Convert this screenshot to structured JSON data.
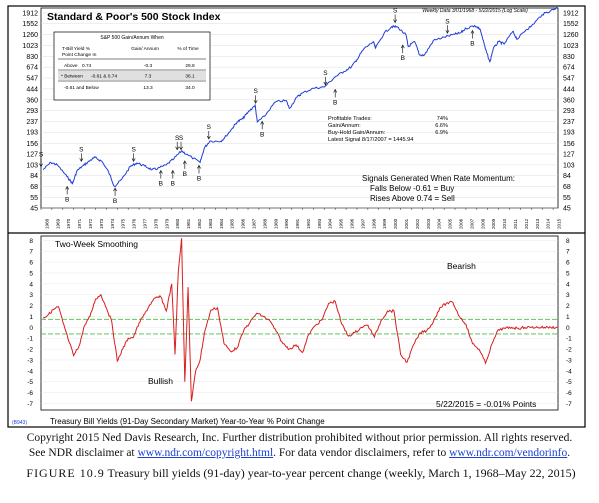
{
  "top_panel": {
    "title": "Standard & Poor's 500 Stock Index",
    "date_range": "Weekly Data 3/01/1968 - 5/22/2015 (Log Scale)",
    "table": {
      "title": "S&P 500 Gain/Annum When",
      "headers": [
        "T-Bill Yield %",
        "Point Change In",
        "Gain/ Annum",
        "% of Time"
      ],
      "rows": [
        {
          "label": "Above",
          "threshold": "0.74",
          "gain": "-0.3",
          "time": "29.8"
        },
        {
          "label": "* Between",
          "threshold": "-0.61 & 0.74",
          "gain": "7.3",
          "time": "36.1"
        },
        {
          "label": "-0.61 and Below",
          "threshold": "",
          "gain": "13.3",
          "time": "34.0"
        }
      ]
    },
    "stats": [
      {
        "label": "Profitable Trades:",
        "value": "74%"
      },
      {
        "label": "Gain/Annum:",
        "value": "6.6%"
      },
      {
        "label": "Buy-Hold Gain/Annum:",
        "value": "6.9%"
      },
      {
        "label": "Latest Signal 8/17/2007 = 1445.94",
        "value": ""
      }
    ],
    "signals_text": [
      "Signals Generated When Rate Momentum:",
      "Falls Below -0.61 = Buy",
      "Rises Above 0.74 = Sell"
    ]
  },
  "bottom_panel": {
    "title": "Two-Week Smoothing",
    "bearish_label": "Bearish",
    "bullish_label": "Bullish",
    "latest": "5/22/2015 = -0.01% Points",
    "footer_code": "(B943)",
    "footer_title": "Treasury Bill Yields (91-Day Secondary Market) Year-to-Year % Point Change"
  },
  "copyright": {
    "line1": "Copyright 2015 Ned Davis Research, Inc. Further distribution prohibited without prior permission. All rights reserved.",
    "line2_pre": "See NDR disclaimer at ",
    "line2_link1": "www.ndr.com/copyright.html",
    "line2_mid": ". For data vendor disclaimers, refer to ",
    "line2_link2": "www.ndr.com/vendorinfo",
    "line2_post": "."
  },
  "caption": {
    "label": "FIGURE 10.9",
    "text": "Treasury bill yields (91-day) year-to-year percent change (weekly, March 1, 1968–May 22, 2015)"
  },
  "colors": {
    "spx_line": "#1f3fd6",
    "rate_line": "#d81e1e",
    "threshold_line": "#4db84d",
    "frame": "#000000"
  },
  "chart_data": [
    {
      "type": "line",
      "name": "S&P 500",
      "title": "Standard & Poor's 500 Stock Index",
      "scale": "log",
      "ylim": [
        45,
        2100
      ],
      "y_ticks": [
        45,
        55,
        68,
        84,
        103,
        127,
        156,
        193,
        237,
        293,
        360,
        444,
        547,
        674,
        830,
        1023,
        1260,
        1552,
        1912
      ],
      "x_ticks": [
        1968,
        1969,
        1970,
        1971,
        1972,
        1973,
        1974,
        1975,
        1976,
        1977,
        1978,
        1979,
        1980,
        1981,
        1982,
        1983,
        1984,
        1985,
        1986,
        1987,
        1988,
        1989,
        1990,
        1991,
        1992,
        1993,
        1994,
        1995,
        1996,
        1997,
        1998,
        1999,
        2000,
        2001,
        2002,
        2003,
        2004,
        2005,
        2006,
        2007,
        2008,
        2009,
        2010,
        2011,
        2012,
        2013,
        2014,
        2015
      ],
      "x": [
        1968.2,
        1968.9,
        1969.5,
        1970.4,
        1970.9,
        1971.3,
        1971.9,
        1972.5,
        1972.95,
        1973.6,
        1974.2,
        1974.75,
        1975.4,
        1976.2,
        1976.8,
        1977.5,
        1978.2,
        1978.7,
        1979.5,
        1980.2,
        1980.9,
        1981.5,
        1982.6,
        1983.0,
        1983.5,
        1984.5,
        1985.0,
        1985.5,
        1986.0,
        1986.5,
        1987.0,
        1987.65,
        1987.85,
        1988.5,
        1989.5,
        1990.5,
        1990.8,
        1991.5,
        1992.0,
        1993.0,
        1994.0,
        1995.0,
        1995.8,
        1996.5,
        1997.0,
        1997.6,
        1998.5,
        1998.7,
        1999.5,
        2000.2,
        2000.7,
        2001.5,
        2001.7,
        2002.3,
        2002.75,
        2003.2,
        2004.0,
        2005.0,
        2006.0,
        2006.5,
        2007.0,
        2007.8,
        2008.3,
        2008.8,
        2009.2,
        2009.5,
        2010.0,
        2010.5,
        2011.3,
        2011.7,
        2012.5,
        2013.0,
        2014.0,
        2014.8,
        2015.4
      ],
      "y": [
        94,
        108,
        103,
        82,
        72,
        92,
        102,
        112,
        119,
        110,
        90,
        68,
        78,
        100,
        107,
        101,
        94,
        96,
        103,
        116,
        135,
        124,
        108,
        143,
        163,
        162,
        180,
        205,
        235,
        250,
        283,
        325,
        235,
        262,
        345,
        355,
        305,
        380,
        410,
        450,
        460,
        560,
        620,
        680,
        780,
        950,
        1100,
        970,
        1300,
        1470,
        1460,
        1250,
        1000,
        1100,
        850,
        850,
        1120,
        1200,
        1270,
        1300,
        1420,
        1500,
        1400,
        950,
        740,
        960,
        1100,
        1050,
        1340,
        1150,
        1380,
        1480,
        1850,
        2000,
        2120
      ],
      "signals": [
        {
          "x": 1968.0,
          "y": 94,
          "type": "S"
        },
        {
          "x": 1970.4,
          "y": 72,
          "type": "B"
        },
        {
          "x": 1971.7,
          "y": 104,
          "type": "S"
        },
        {
          "x": 1974.8,
          "y": 70,
          "type": "B"
        },
        {
          "x": 1976.5,
          "y": 104,
          "type": "S"
        },
        {
          "x": 1979.0,
          "y": 98,
          "type": "B"
        },
        {
          "x": 1980.1,
          "y": 98,
          "type": "B"
        },
        {
          "x": 1980.5,
          "y": 130,
          "type": "S"
        },
        {
          "x": 1980.85,
          "y": 130,
          "type": "S"
        },
        {
          "x": 1981.2,
          "y": 118,
          "type": "B"
        },
        {
          "x": 1983.4,
          "y": 160,
          "type": "S"
        },
        {
          "x": 1982.5,
          "y": 108,
          "type": "B"
        },
        {
          "x": 1987.7,
          "y": 318,
          "type": "S"
        },
        {
          "x": 1988.3,
          "y": 252,
          "type": "B"
        },
        {
          "x": 1994.1,
          "y": 452,
          "type": "S"
        },
        {
          "x": 1995.0,
          "y": 465,
          "type": "B"
        },
        {
          "x": 2000.5,
          "y": 1500,
          "type": "S"
        },
        {
          "x": 2001.2,
          "y": 1090,
          "type": "B"
        },
        {
          "x": 2005.3,
          "y": 1220,
          "type": "S"
        },
        {
          "x": 2007.6,
          "y": 1445,
          "type": "B"
        }
      ]
    },
    {
      "type": "line",
      "name": "T-Bill yield year-to-year point change",
      "title": "Two-Week Smoothing",
      "ylim": [
        -7.6,
        8.4
      ],
      "y_ticks": [
        8,
        7,
        6,
        5,
        4,
        3,
        2,
        1,
        0,
        -1,
        -2,
        -3,
        -4,
        -5,
        -6,
        -7
      ],
      "thresholds": [
        0.74,
        -0.61
      ],
      "x": [
        1968.2,
        1968.6,
        1969.1,
        1969.6,
        1970.0,
        1970.6,
        1971.0,
        1971.5,
        1972.0,
        1972.5,
        1973.0,
        1973.5,
        1974.0,
        1974.5,
        1975.0,
        1975.5,
        1976.0,
        1976.5,
        1977.0,
        1977.5,
        1978.0,
        1978.5,
        1979.0,
        1979.5,
        1980.0,
        1980.3,
        1980.6,
        1980.9,
        1981.2,
        1981.5,
        1981.8,
        1982.2,
        1982.6,
        1983.0,
        1983.6,
        1984.2,
        1984.8,
        1985.4,
        1986.0,
        1986.6,
        1987.2,
        1987.8,
        1988.4,
        1989.0,
        1989.6,
        1990.2,
        1990.8,
        1991.4,
        1992.0,
        1992.6,
        1993.2,
        1993.8,
        1994.4,
        1995.0,
        1995.6,
        1996.2,
        1996.8,
        1997.4,
        1998.0,
        1998.6,
        1999.2,
        1999.8,
        2000.4,
        2001.0,
        2001.6,
        2002.2,
        2002.8,
        2003.4,
        2004.0,
        2004.6,
        2005.2,
        2005.8,
        2006.4,
        2007.0,
        2007.6,
        2008.2,
        2008.8,
        2009.4,
        2010.0,
        2010.6,
        2011.2,
        2011.8,
        2012.4,
        2013.0,
        2013.6,
        2014.2,
        2014.8,
        2015.4
      ],
      "y": [
        0.9,
        1.1,
        1.6,
        1.9,
        0.5,
        -1.4,
        -2.6,
        -1.7,
        0.2,
        1.0,
        2.6,
        3.0,
        1.8,
        0.5,
        -3.1,
        -2.0,
        -1.0,
        -0.9,
        0.4,
        1.2,
        2.1,
        2.7,
        2.8,
        1.5,
        4.0,
        -2.5,
        5.1,
        8.2,
        -5.0,
        3.7,
        -6.8,
        -4.0,
        -3.0,
        -0.5,
        1.6,
        1.8,
        -1.5,
        -2.2,
        -1.9,
        -0.3,
        0.5,
        1.3,
        1.0,
        0.6,
        -0.4,
        -1.5,
        -2.0,
        -1.6,
        -2.3,
        -0.6,
        0.2,
        0.7,
        2.2,
        2.4,
        0.3,
        -0.8,
        -0.5,
        0.0,
        0.2,
        -0.9,
        0.6,
        1.5,
        1.5,
        -2.5,
        -3.2,
        -1.6,
        -0.5,
        -0.3,
        0.5,
        1.8,
        2.2,
        2.3,
        1.0,
        0.3,
        -1.5,
        -2.0,
        -3.3,
        -1.5,
        -0.2,
        -0.1,
        0.0,
        -0.1,
        0.0,
        0.0,
        0.0,
        0.0,
        0.0,
        -0.01
      ]
    }
  ]
}
